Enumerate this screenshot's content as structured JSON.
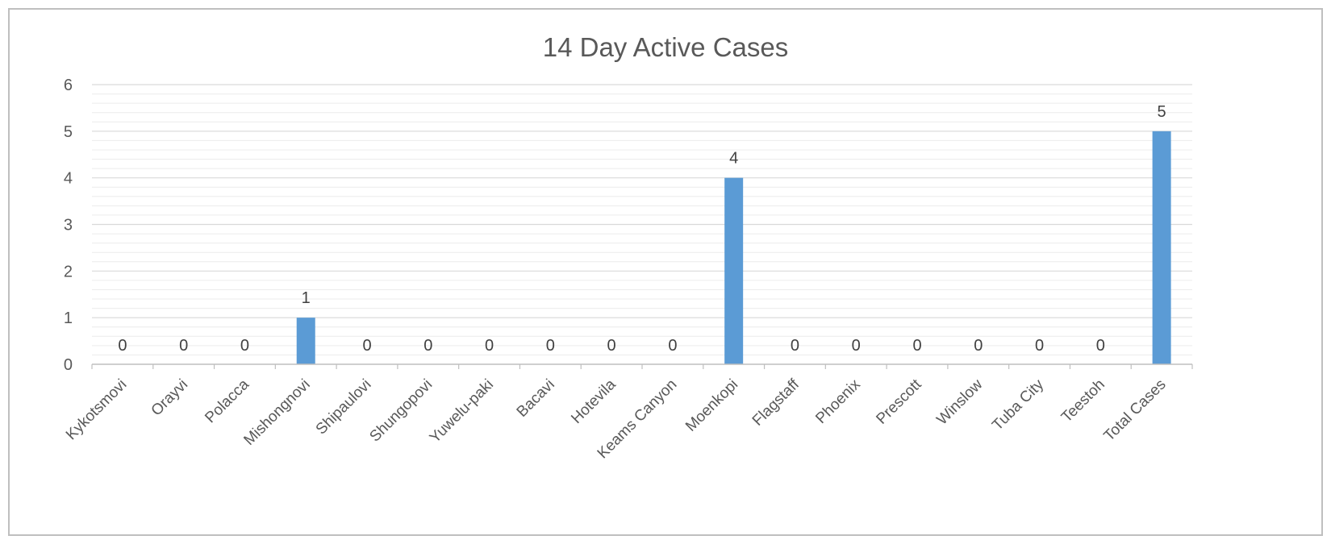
{
  "chart_data": {
    "type": "bar",
    "title": "14 Day Active Cases",
    "xlabel": "",
    "ylabel": "",
    "ylim": [
      0,
      6
    ],
    "yticks": [
      0,
      1,
      2,
      3,
      4,
      5,
      6
    ],
    "minor_gridlines": true,
    "legend": "none",
    "data_labels": true,
    "bar_color": "#5b9bd5",
    "categories": [
      "Kykotsmovi",
      "Orayvi",
      "Polacca",
      "Mishongnovi",
      "Shipaulovi",
      "Shungopovi",
      "Yuwelu-paki",
      "Bacavi",
      "Hotevila",
      "Keams Canyon",
      "Moenkopi",
      "Flagstaff",
      "Phoenix",
      "Prescott",
      "Winslow",
      "Tuba City",
      "Teestoh",
      "Total Cases"
    ],
    "values": [
      0,
      0,
      0,
      1,
      0,
      0,
      0,
      0,
      0,
      0,
      4,
      0,
      0,
      0,
      0,
      0,
      0,
      5
    ]
  }
}
